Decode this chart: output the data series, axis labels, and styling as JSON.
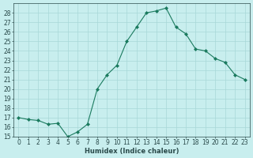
{
  "x": [
    0,
    1,
    2,
    3,
    4,
    5,
    6,
    7,
    8,
    9,
    10,
    11,
    12,
    13,
    14,
    15,
    16,
    17,
    18,
    19,
    20,
    21,
    22,
    23
  ],
  "y": [
    17.0,
    16.8,
    16.7,
    16.3,
    16.4,
    15.0,
    15.5,
    16.3,
    20.0,
    21.5,
    22.5,
    25.0,
    26.5,
    28.0,
    28.2,
    28.5,
    26.5,
    25.8,
    24.2,
    24.0,
    23.2,
    22.8,
    21.5,
    21.0
  ],
  "line_color": "#1a7a5e",
  "marker": "D",
  "marker_size": 2.0,
  "bg_color": "#c8eeee",
  "grid_color": "#a8d8d8",
  "xlabel": "Humidex (Indice chaleur)",
  "ylim": [
    15,
    29
  ],
  "xlim": [
    -0.5,
    23.5
  ],
  "yticks": [
    15,
    16,
    17,
    18,
    19,
    20,
    21,
    22,
    23,
    24,
    25,
    26,
    27,
    28
  ],
  "xticks": [
    0,
    1,
    2,
    3,
    4,
    5,
    6,
    7,
    8,
    9,
    10,
    11,
    12,
    13,
    14,
    15,
    16,
    17,
    18,
    19,
    20,
    21,
    22,
    23
  ],
  "font_color": "#2a4a4a",
  "xlabel_fontsize": 6.0,
  "tick_fontsize": 5.5,
  "linewidth": 0.8
}
